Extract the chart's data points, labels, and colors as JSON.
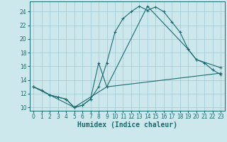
{
  "xlabel": "Humidex (Indice chaleur)",
  "xlim": [
    -0.5,
    23.5
  ],
  "ylim": [
    9.5,
    25.5
  ],
  "xticks": [
    0,
    1,
    2,
    3,
    4,
    5,
    6,
    7,
    8,
    9,
    10,
    11,
    12,
    13,
    14,
    15,
    16,
    17,
    18,
    19,
    20,
    21,
    22,
    23
  ],
  "yticks": [
    10,
    12,
    14,
    16,
    18,
    20,
    22,
    24
  ],
  "background_color": "#cde8ed",
  "grid_color": "#a0c8d0",
  "line_color": "#1a6b6e",
  "line1_x": [
    0,
    1,
    2,
    3,
    4,
    5,
    6,
    7,
    8,
    9,
    10,
    11,
    12,
    13,
    14,
    15,
    16,
    17,
    18,
    19,
    20,
    21,
    22,
    23
  ],
  "line1_y": [
    13,
    12.5,
    11.8,
    11.5,
    11.2,
    10,
    10.3,
    11.2,
    13.0,
    16.5,
    21.0,
    23.0,
    24.0,
    24.8,
    24.2,
    24.7,
    24.0,
    22.5,
    21.0,
    18.5,
    17.0,
    16.5,
    15.5,
    14.8
  ],
  "line2_x": [
    0,
    2,
    3,
    4,
    5,
    6,
    7,
    8,
    9,
    14,
    19,
    20,
    23
  ],
  "line2_y": [
    13,
    11.8,
    11.5,
    11.2,
    10,
    10.3,
    11.2,
    16.5,
    13.0,
    24.8,
    18.5,
    17.0,
    15.8
  ],
  "line3_x": [
    0,
    5,
    9,
    23
  ],
  "line3_y": [
    13,
    10,
    13.0,
    15.0
  ],
  "fontsize_xlabel": 7,
  "marker": "+",
  "markersize": 3,
  "linewidth": 0.8
}
